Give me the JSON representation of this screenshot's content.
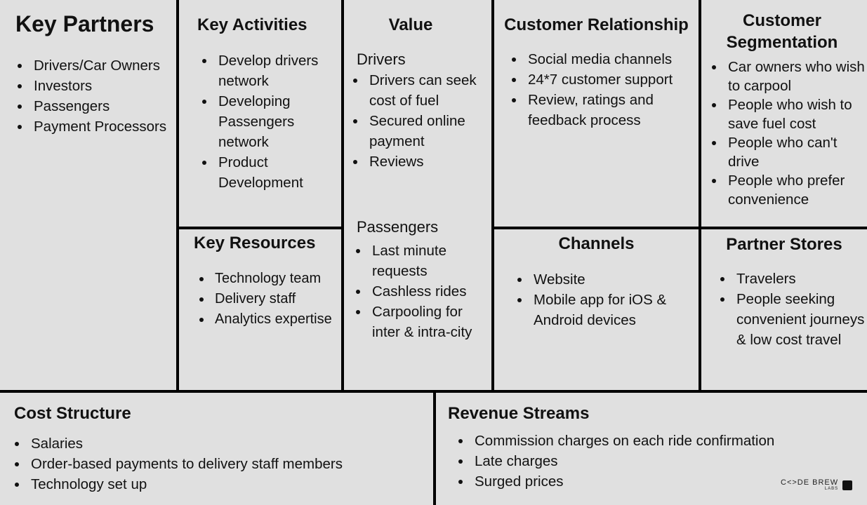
{
  "key_partners": {
    "title": "Key Partners",
    "items": [
      "Drivers/Car Owners",
      "Investors",
      "Passengers",
      "Payment Processors"
    ]
  },
  "key_activities": {
    "title": "Key Activities",
    "items": [
      "Develop drivers network",
      "Developing Passengers network",
      "Product Development"
    ]
  },
  "key_resources": {
    "title": "Key Resources",
    "items": [
      "Technology team",
      "Delivery staff",
      "Analytics expertise"
    ]
  },
  "value": {
    "title": "Value",
    "drivers": {
      "title": "Drivers",
      "items": [
        "Drivers can seek cost of fuel",
        "Secured online payment",
        "Reviews"
      ]
    },
    "passengers": {
      "title": "Passengers",
      "items": [
        "Last minute requests",
        "Cashless rides",
        "Carpooling for inter & intra-city"
      ]
    }
  },
  "customer_relationship": {
    "title": "Customer Relationship",
    "items": [
      "Social media channels",
      "24*7 customer support",
      "Review, ratings and feedback process"
    ]
  },
  "customer_segmentation": {
    "title": "Customer Segmentation",
    "items": [
      "Car owners who wish to carpool",
      "People who wish to save fuel cost",
      "People who can't drive",
      "People who prefer convenience"
    ]
  },
  "channels": {
    "title": "Channels",
    "items": [
      "Website",
      "Mobile app for iOS & Android devices"
    ]
  },
  "partner_stores": {
    "title": "Partner Stores",
    "items": [
      "Travelers",
      "People seeking convenient journeys & low cost travel"
    ]
  },
  "cost_structure": {
    "title": "Cost Structure",
    "items": [
      "Salaries",
      "Order-based payments to delivery staff members",
      "Technology set up"
    ]
  },
  "revenue_streams": {
    "title": "Revenue Streams",
    "items": [
      "Commission charges on each ride confirmation",
      "Late charges",
      "Surged prices"
    ]
  },
  "logo": {
    "text": "C<>DE BREW",
    "sub": "LABS"
  },
  "colors": {
    "background": "#e0e0e0",
    "lines": "#000000"
  }
}
